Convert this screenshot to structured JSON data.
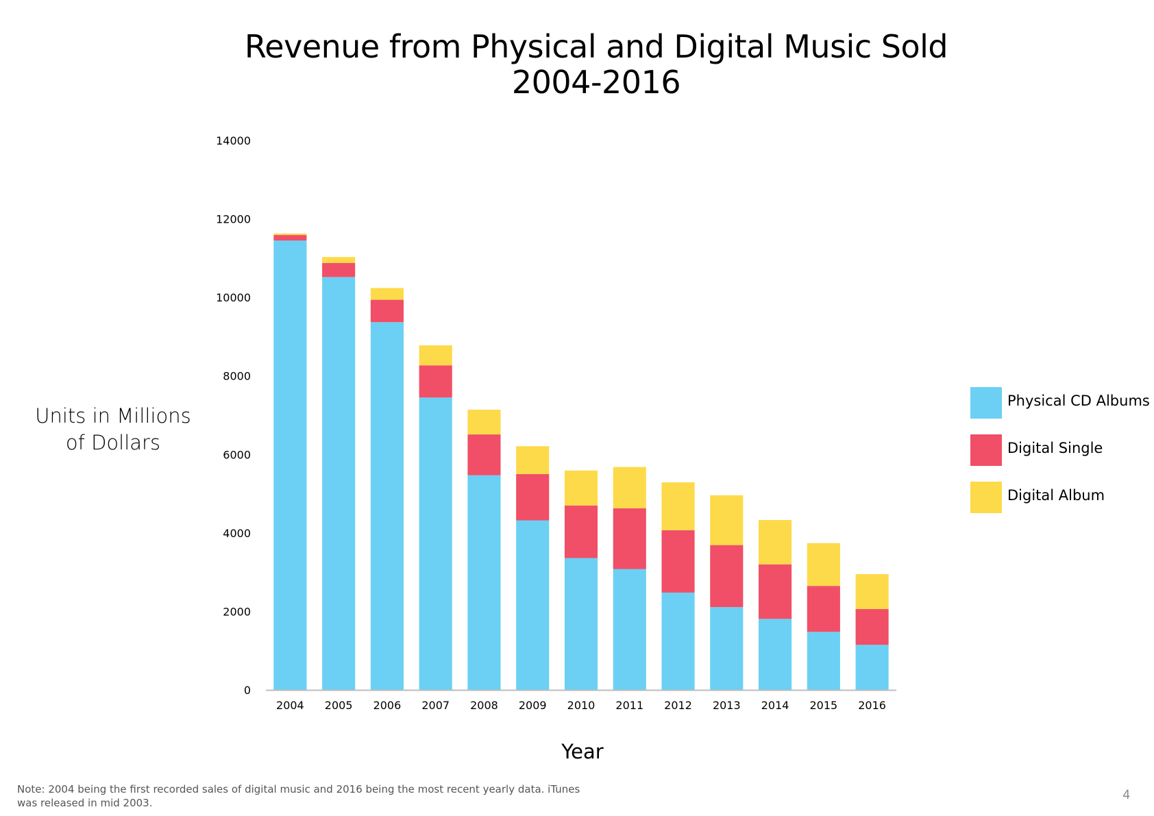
{
  "chart_data": {
    "type": "bar",
    "stacked": true,
    "title": "Revenue from Physical and Digital Music Sold",
    "subtitle": "2004-2016",
    "xlabel": "Year",
    "ylabel": "Units in Millions of Dollars",
    "ylabel_lines": [
      "Units in Millions",
      "of Dollars"
    ],
    "categories": [
      "2004",
      "2005",
      "2006",
      "2007",
      "2008",
      "2009",
      "2010",
      "2011",
      "2012",
      "2013",
      "2014",
      "2015",
      "2016"
    ],
    "yticks": [
      "0",
      "2000",
      "4000",
      "6000",
      "8000",
      "10000",
      "12000",
      "14000"
    ],
    "ylim": [
      0,
      14000
    ],
    "grid": false,
    "legend_position": "right",
    "series": [
      {
        "name": "Physical CD Albums",
        "color": "#6BD0F3",
        "values": [
          11450,
          10520,
          9370,
          7450,
          5470,
          4320,
          3360,
          3080,
          2480,
          2110,
          1810,
          1480,
          1150
        ]
      },
      {
        "name": "Digital Single",
        "color": "#F04F67",
        "values": [
          140,
          360,
          570,
          820,
          1040,
          1180,
          1340,
          1550,
          1590,
          1580,
          1390,
          1170,
          910
        ]
      },
      {
        "name": "Digital Album",
        "color": "#FDDA4A",
        "values": [
          40,
          150,
          300,
          510,
          630,
          710,
          890,
          1050,
          1220,
          1270,
          1130,
          1090,
          890
        ]
      }
    ]
  },
  "note": "Note: 2004 being the first recorded sales of digital music and 2016 being the most recent yearly data. iTunes was released in mid 2003.",
  "page_number": "4"
}
